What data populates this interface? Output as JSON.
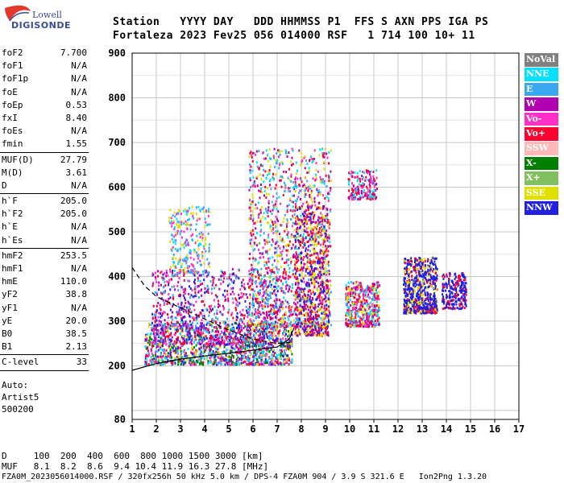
{
  "logo": {
    "line1": "Lowell",
    "line2": "DIGISONDE"
  },
  "header": {
    "row1": "Station   YYYY DAY   DDD HHMMSS P1  FFS S AXN PPS IGA PS",
    "row2": "Fortaleza 2023 Fev25 056 014000 RSF   1 714 100 10+ 11"
  },
  "params": [
    {
      "k": "foF2",
      "v": "7.700"
    },
    {
      "k": "foF1",
      "v": "N/A"
    },
    {
      "k": "foF1p",
      "v": "N/A"
    },
    {
      "k": "foE",
      "v": "N/A"
    },
    {
      "k": "foEp",
      "v": "0.53"
    },
    {
      "k": "fxI",
      "v": "8.40"
    },
    {
      "k": "foEs",
      "v": "N/A"
    },
    {
      "k": "fmin",
      "v": "1.55",
      "sep": true
    },
    {
      "k": "MUF(D)",
      "v": "27.79"
    },
    {
      "k": "M(D)",
      "v": "3.61"
    },
    {
      "k": "D",
      "v": "N/A",
      "sep": true
    },
    {
      "k": "h`F",
      "v": "205.0"
    },
    {
      "k": "h`F2",
      "v": "205.0"
    },
    {
      "k": "h`E",
      "v": "N/A"
    },
    {
      "k": "h`Es",
      "v": "N/A",
      "sep": true
    },
    {
      "k": "hmF2",
      "v": "253.5"
    },
    {
      "k": "hmF1",
      "v": "N/A"
    },
    {
      "k": "hmE",
      "v": "110.0"
    },
    {
      "k": "yF2",
      "v": "38.8"
    },
    {
      "k": "yF1",
      "v": "N/A"
    },
    {
      "k": "yE",
      "v": "20.0"
    },
    {
      "k": "B0",
      "v": "38.5"
    },
    {
      "k": "B1",
      "v": "2.13",
      "sep": true
    },
    {
      "k": "C-level",
      "v": "33",
      "sep": true
    }
  ],
  "auto": {
    "line1": "Auto:",
    "line2": "Artist5",
    "line3": "500200"
  },
  "legend": [
    {
      "label": "NoVal",
      "bg": "#808080",
      "fg": "#ffffff"
    },
    {
      "label": "NNE",
      "bg": "#00e0ff",
      "fg": "#ffffff"
    },
    {
      "label": "E",
      "bg": "#3aa8f0",
      "fg": "#ffffff"
    },
    {
      "label": "W",
      "bg": "#b000b0",
      "fg": "#ffffff"
    },
    {
      "label": "Vo-",
      "bg": "#ff30c8",
      "fg": "#ffffff"
    },
    {
      "label": "Vo+",
      "bg": "#ff0030",
      "fg": "#ffffff"
    },
    {
      "label": "SSW",
      "bg": "#ffb8b8",
      "fg": "#ffffff"
    },
    {
      "label": "X-",
      "bg": "#008000",
      "fg": "#ffffff"
    },
    {
      "label": "X+",
      "bg": "#80c060",
      "fg": "#ffffff"
    },
    {
      "label": "SSE",
      "bg": "#e0e000",
      "fg": "#ffffff"
    },
    {
      "label": "NNW",
      "bg": "#2020e0",
      "fg": "#ffffff"
    }
  ],
  "footer": {
    "d_row": "D     100  200  400  600  800 1000 1500 3000 [km]",
    "muf_row": "MUF   8.1  8.2  8.6  9.4 10.4 11.9 16.3 27.8 [MHz]",
    "info_row": "FZA0M_2023056014000.RSF / 320fx256h 50 kHz 5.0 km / DPS-4 FZA0M 904 / 3.9 S 321.6 E   Ion2Png 1.3.20"
  },
  "chart_data": {
    "type": "scatter",
    "xlim": [
      1,
      17
    ],
    "ylim": [
      80,
      900
    ],
    "xticks": [
      1,
      2,
      3,
      4,
      5,
      6,
      7,
      8,
      9,
      10,
      11,
      12,
      13,
      14,
      15,
      16,
      17
    ],
    "yticks": [
      80,
      200,
      300,
      400,
      500,
      600,
      700,
      800,
      900
    ],
    "grid": true,
    "clusters": [
      {
        "name": "F-trace low",
        "x": [
          1.5,
          7.6
        ],
        "y": [
          205,
          300
        ],
        "colors": [
          "#3aa8f0",
          "#00e0ff",
          "#b000b0",
          "#ff0030",
          "#ff30c8",
          "#2020e0",
          "#e0e000",
          "#008000"
        ],
        "n": 1400
      },
      {
        "name": "F-trace upper",
        "x": [
          1.8,
          7.0
        ],
        "y": [
          250,
          420
        ],
        "colors": [
          "#b000b0",
          "#ff0030",
          "#ff30c8",
          "#3aa8f0",
          "#2020e0"
        ],
        "n": 900
      },
      {
        "name": "oblique 2-4 MHz",
        "x": [
          2.5,
          4.2
        ],
        "y": [
          410,
          560
        ],
        "colors": [
          "#00e0ff",
          "#3aa8f0",
          "#e0e000",
          "#ff30c8"
        ],
        "n": 260
      },
      {
        "name": "spread 6-9 MHz",
        "x": [
          5.8,
          9.2
        ],
        "y": [
          290,
          690
        ],
        "colors": [
          "#b000b0",
          "#ff0030",
          "#ff30c8",
          "#00e0ff",
          "#e0e000",
          "#3aa8f0"
        ],
        "n": 1300
      },
      {
        "name": "band 7.8-9",
        "x": [
          7.7,
          9.1
        ],
        "y": [
          270,
          560
        ],
        "colors": [
          "#ff0030",
          "#b000b0",
          "#2020e0",
          "#e0e000"
        ],
        "n": 700
      },
      {
        "name": "10 MHz patch",
        "x": [
          9.8,
          11.2
        ],
        "y": [
          290,
          390
        ],
        "colors": [
          "#ff0030",
          "#ff30c8",
          "#00e0ff",
          "#e0e000",
          "#b000b0"
        ],
        "n": 500
      },
      {
        "name": "10 MHz top",
        "x": [
          9.9,
          11.1
        ],
        "y": [
          575,
          640
        ],
        "colors": [
          "#b000b0",
          "#ff0030",
          "#ff30c8",
          "#00e0ff"
        ],
        "n": 180
      },
      {
        "name": "12-13.5 MHz",
        "x": [
          12.2,
          13.6
        ],
        "y": [
          320,
          445
        ],
        "colors": [
          "#2020e0",
          "#2020e0",
          "#2020e0",
          "#e0e000",
          "#ff0030"
        ],
        "n": 650
      },
      {
        "name": "14 MHz",
        "x": [
          13.8,
          14.8
        ],
        "y": [
          330,
          410
        ],
        "colors": [
          "#2020e0",
          "#2020e0",
          "#ff0030"
        ],
        "n": 220
      }
    ],
    "profile_dashed": [
      [
        1.0,
        420
      ],
      [
        1.5,
        380
      ],
      [
        2.0,
        355
      ],
      [
        3.0,
        330
      ],
      [
        4.0,
        305
      ],
      [
        5.0,
        280
      ],
      [
        6.0,
        260
      ],
      [
        7.0,
        250
      ],
      [
        7.7,
        253.5
      ]
    ],
    "profile_solid": [
      [
        1.0,
        190
      ],
      [
        2.0,
        205
      ],
      [
        3.0,
        215
      ],
      [
        4.0,
        222
      ],
      [
        5.0,
        228
      ],
      [
        6.0,
        235
      ],
      [
        7.0,
        242
      ],
      [
        7.5,
        260
      ],
      [
        7.7,
        285
      ]
    ]
  }
}
